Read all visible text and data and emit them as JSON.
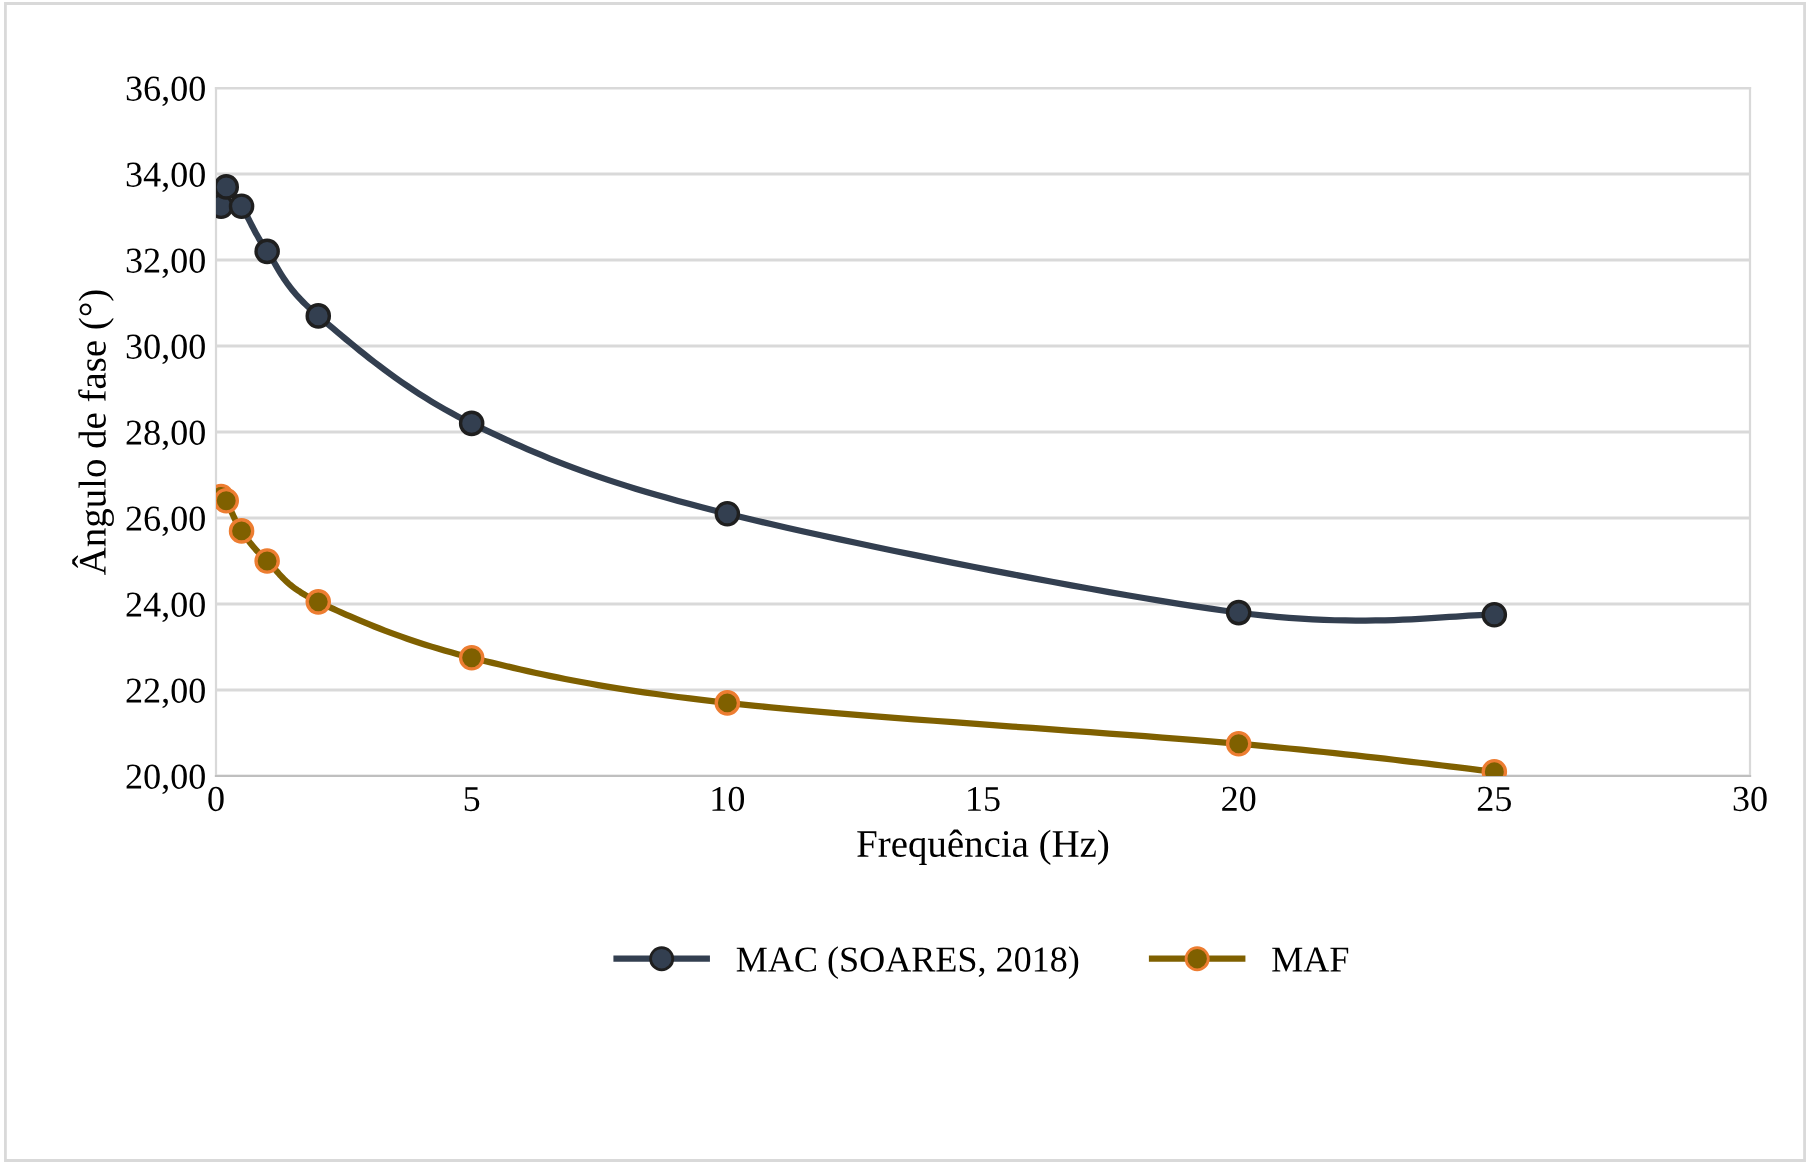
{
  "chart_data": {
    "type": "line",
    "xlabel": "Frequência (Hz)",
    "ylabel": "Ângulo de fase (°)",
    "xlim": [
      0,
      30
    ],
    "xticks": [
      0,
      5,
      10,
      15,
      20,
      25,
      30
    ],
    "ylim": [
      20,
      36
    ],
    "yticks": [
      {
        "value": 20,
        "label": "20,00"
      },
      {
        "value": 22,
        "label": "22,00"
      },
      {
        "value": 24,
        "label": "24,00"
      },
      {
        "value": 26,
        "label": "26,00"
      },
      {
        "value": 28,
        "label": "28,00"
      },
      {
        "value": 30,
        "label": "30,00"
      },
      {
        "value": 32,
        "label": "32,00"
      },
      {
        "value": 34,
        "label": "34,00"
      },
      {
        "value": 36,
        "label": "36,00"
      }
    ],
    "grid": "y",
    "legend": "bottom",
    "marker": "circle",
    "line_style": "solid",
    "series": [
      {
        "name": "MAC (SOARES, 2018)",
        "color": "#333f50",
        "x": [
          0.1,
          0.2,
          0.5,
          1,
          2,
          5,
          10,
          20,
          25
        ],
        "values": [
          33.25,
          33.7,
          33.25,
          32.2,
          30.7,
          28.2,
          26.1,
          23.8,
          23.75
        ]
      },
      {
        "name": "MAF",
        "color": "#7f6000",
        "x": [
          0.1,
          0.2,
          0.5,
          1,
          2,
          5,
          10,
          20,
          25
        ],
        "values": [
          26.5,
          26.4,
          25.7,
          25.0,
          24.05,
          22.75,
          21.7,
          20.75,
          20.1
        ]
      }
    ]
  }
}
